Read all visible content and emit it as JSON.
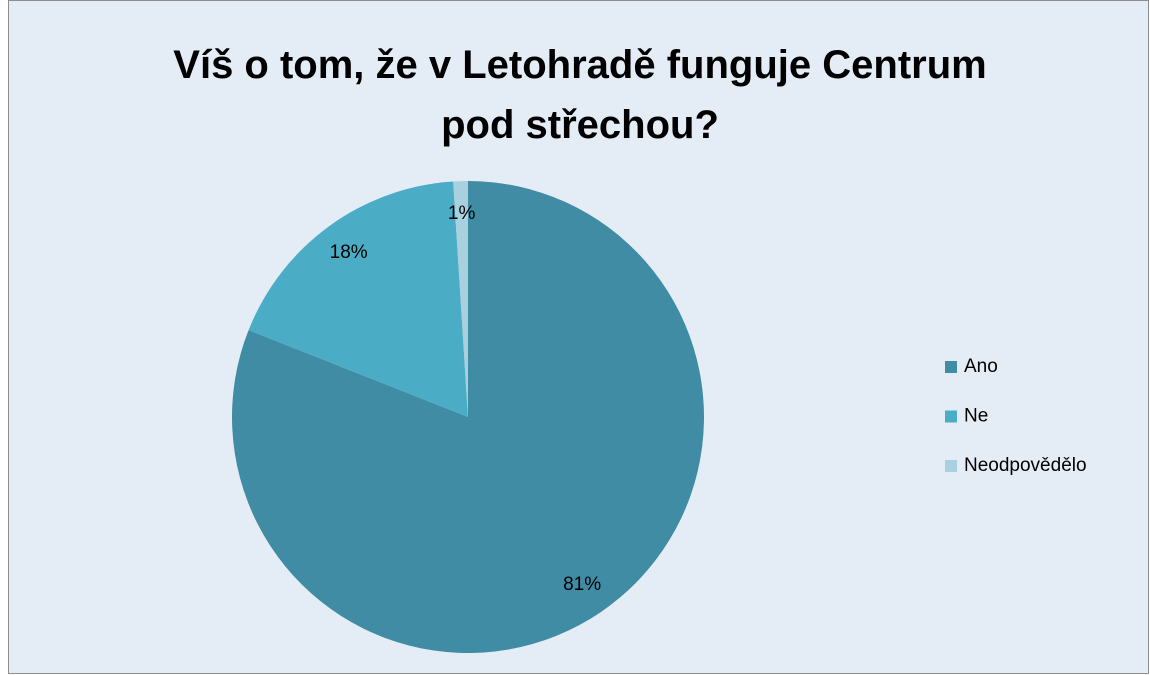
{
  "chart_data": {
    "type": "pie",
    "title": "Víš o tom, že v Letohradě funguje Centrum pod střechou?",
    "categories": [
      "Ano",
      "Ne",
      "Neodpovědělo"
    ],
    "values": [
      81,
      18,
      1
    ],
    "value_labels": [
      "81%",
      "18%",
      "1%"
    ],
    "colors": [
      "#3f8ca4",
      "#4bacc6",
      "#a8d0df"
    ],
    "legend": "right"
  }
}
